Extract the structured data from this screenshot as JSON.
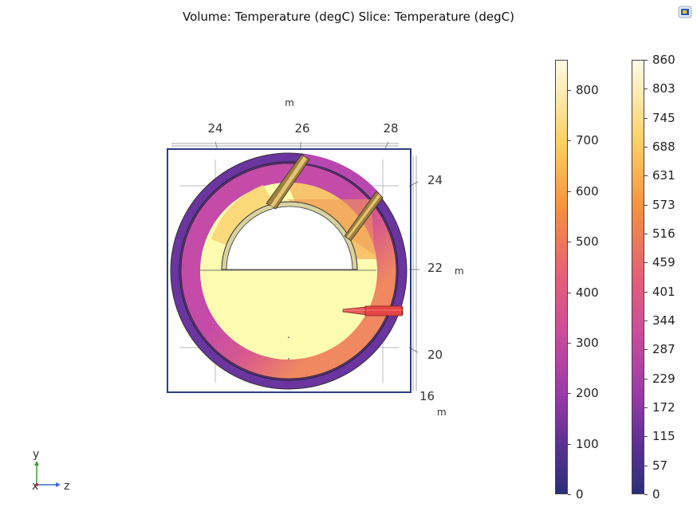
{
  "title": "Volume: Temperature (degC)  Slice: Temperature (degC)",
  "icons": {
    "nav": "cube-view-icon",
    "axes_triad": "axes-triad-icon"
  },
  "axes": {
    "top_unit": "m",
    "top_ticks": [
      "24",
      "26",
      "28"
    ],
    "right_unit": "m",
    "right_ticks": [
      "24",
      "22",
      "20",
      "16"
    ],
    "bottom_unit": "m"
  },
  "triad": {
    "y": "y",
    "x": "x",
    "z": "z"
  },
  "colorbars": [
    {
      "name": "volume",
      "min": 0,
      "max": 860,
      "ticks": [
        "800",
        "700",
        "600",
        "500",
        "400",
        "300",
        "200",
        "100",
        "0"
      ]
    },
    {
      "name": "slice",
      "min": 0,
      "max": 860,
      "ticks": [
        "860",
        "803",
        "745",
        "688",
        "631",
        "573",
        "516",
        "459",
        "401",
        "344",
        "287",
        "229",
        "172",
        "115",
        "57",
        "0"
      ]
    }
  ],
  "colors": {
    "frame": "#2a3f86",
    "hot": "#fcfcb0",
    "warm": "#c74ea8",
    "cool": "#7b3aa3"
  }
}
